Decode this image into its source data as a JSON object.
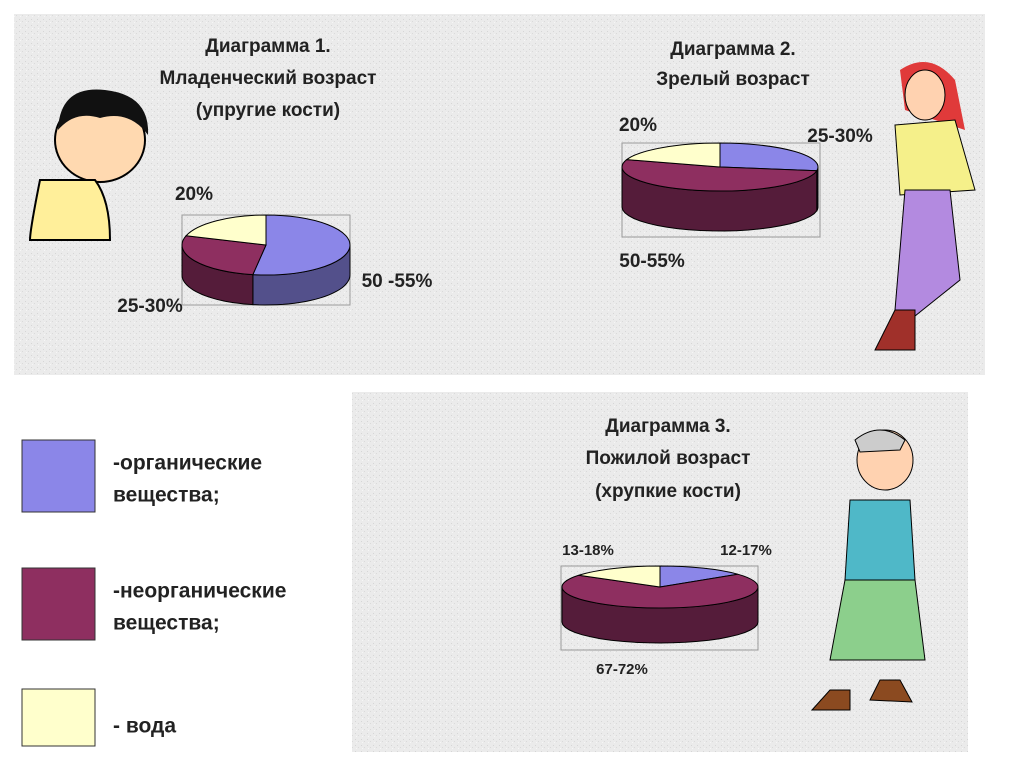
{
  "chart_data": [
    {
      "type": "pie",
      "title": [
        "Диаграмма 1.",
        "Младенческий возраст",
        "(упругие кости)"
      ],
      "values": [
        52.5,
        27.5,
        20
      ],
      "value_labels": [
        "50 -55%",
        "25-30%",
        "20%"
      ]
    },
    {
      "type": "pie",
      "title": [
        "Диаграмма 2.",
        "Зрелый возраст"
      ],
      "values": [
        27.5,
        52.5,
        20
      ],
      "value_labels": [
        "25-30%",
        "50-55%",
        "20%"
      ]
    },
    {
      "type": "pie",
      "title": [
        "Диаграмма 3.",
        "Пожилой возраст",
        "(хрупкие кости)"
      ],
      "values": [
        14.5,
        69.5,
        15.5
      ],
      "value_labels": [
        "12-17%",
        "67-72%",
        "13-18%"
      ]
    }
  ],
  "legend": [
    {
      "label": [
        "-органические",
        "вещества;"
      ],
      "color": "#8b86e8"
    },
    {
      "label": [
        "-неорганические",
        "вещества;"
      ],
      "color": "#8e2f60"
    },
    {
      "label": [
        "- вода"
      ],
      "color": "#ffffcc"
    }
  ]
}
